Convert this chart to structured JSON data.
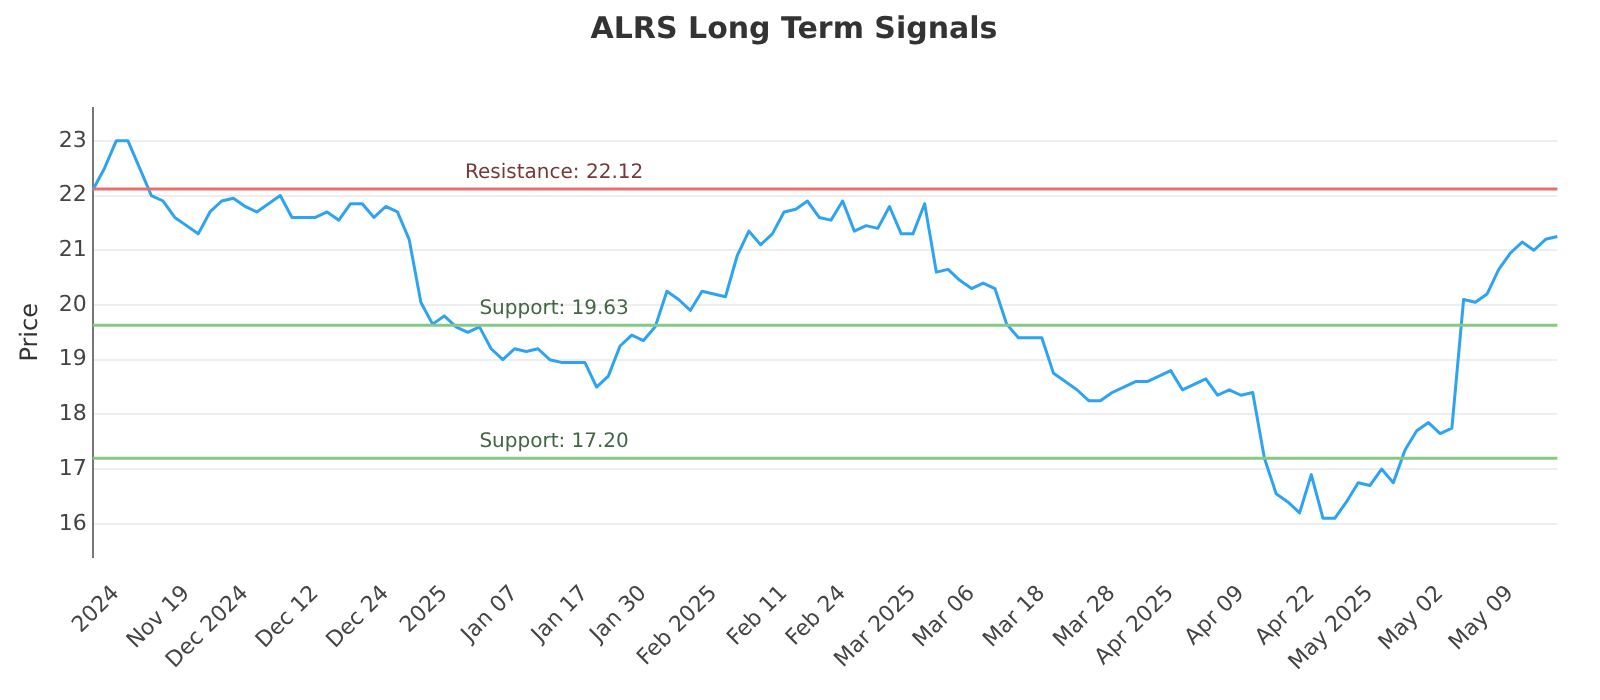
{
  "chart_data": {
    "type": "line",
    "title": "ALRS Long Term Signals",
    "ylabel": "Price",
    "categories": [
      null,
      null,
      "2024",
      null,
      null,
      null,
      null,
      null,
      "Nov 19",
      null,
      null,
      null,
      null,
      "Dec 2024",
      null,
      null,
      null,
      null,
      null,
      "Dec 12",
      null,
      null,
      null,
      null,
      null,
      "Dec 24",
      null,
      null,
      null,
      null,
      "2025",
      null,
      null,
      null,
      null,
      null,
      "Jan 07",
      null,
      null,
      null,
      null,
      null,
      "Jan 17",
      null,
      null,
      null,
      null,
      "Jan 30",
      null,
      null,
      null,
      null,
      null,
      "Feb 2025",
      null,
      null,
      null,
      null,
      null,
      "Feb 11",
      null,
      null,
      null,
      null,
      "Feb 24",
      null,
      null,
      null,
      null,
      null,
      "Mar 2025",
      null,
      null,
      null,
      null,
      "Mar 06",
      null,
      null,
      null,
      null,
      null,
      "Mar 18",
      null,
      null,
      null,
      null,
      null,
      "Mar 28",
      null,
      null,
      null,
      null,
      "Apr 2025",
      null,
      null,
      null,
      null,
      null,
      "Apr 09",
      null,
      null,
      null,
      null,
      null,
      "Apr 22",
      null,
      null,
      null,
      null,
      "May 2025",
      null,
      null,
      null,
      null,
      null,
      "May 02",
      null,
      null,
      null,
      null,
      null,
      "May 09",
      null,
      null,
      null,
      null
    ],
    "series": [
      {
        "color": "#2ea3f2",
        "values": [
          22.1,
          22.5,
          23.0,
          23.0,
          22.5,
          22.0,
          21.9,
          21.6,
          21.45,
          21.3,
          21.7,
          21.9,
          21.95,
          21.8,
          21.7,
          21.85,
          22.0,
          21.6,
          21.6,
          21.6,
          21.7,
          21.55,
          21.85,
          21.85,
          21.6,
          21.8,
          21.7,
          21.2,
          20.05,
          19.65,
          19.8,
          19.6,
          19.5,
          19.6,
          19.2,
          19.0,
          19.2,
          19.15,
          19.2,
          19.0,
          18.95,
          18.95,
          18.95,
          18.5,
          18.7,
          19.25,
          19.45,
          19.35,
          19.6,
          20.25,
          20.1,
          19.9,
          20.25,
          20.2,
          20.15,
          20.9,
          21.35,
          21.1,
          21.3,
          21.7,
          21.75,
          21.9,
          21.6,
          21.55,
          21.9,
          21.35,
          21.45,
          21.4,
          21.8,
          21.3,
          21.3,
          21.85,
          20.6,
          20.65,
          20.45,
          20.3,
          20.4,
          20.3,
          19.65,
          19.4,
          19.4,
          19.4,
          18.75,
          18.6,
          18.45,
          18.25,
          18.25,
          18.4,
          18.5,
          18.6,
          18.6,
          18.7,
          18.8,
          18.45,
          18.55,
          18.65,
          18.35,
          18.45,
          18.35,
          18.4,
          17.2,
          16.55,
          16.4,
          16.2,
          16.9,
          16.1,
          16.1,
          16.4,
          16.75,
          16.7,
          17.0,
          16.75,
          17.35,
          17.7,
          17.85,
          17.65,
          17.75,
          20.1,
          20.05,
          20.2,
          20.65,
          20.95,
          21.15,
          21.0,
          21.2,
          21.25
        ]
      }
    ],
    "ylim": [
      15.4,
      23.6
    ],
    "yticks": [
      16,
      17,
      18,
      19,
      20,
      21,
      22,
      23
    ],
    "grid": "y",
    "marker": "none",
    "line_style": "solid",
    "ref_lines": [
      {
        "axis": "y",
        "value": 22.12,
        "label": "Resistance: 22.12",
        "color": "#e8716f"
      },
      {
        "axis": "y",
        "value": 19.63,
        "label": "Support: 19.63",
        "color": "#86c986"
      },
      {
        "axis": "y",
        "value": 17.2,
        "label": "Support: 17.20",
        "color": "#86c986"
      }
    ]
  }
}
